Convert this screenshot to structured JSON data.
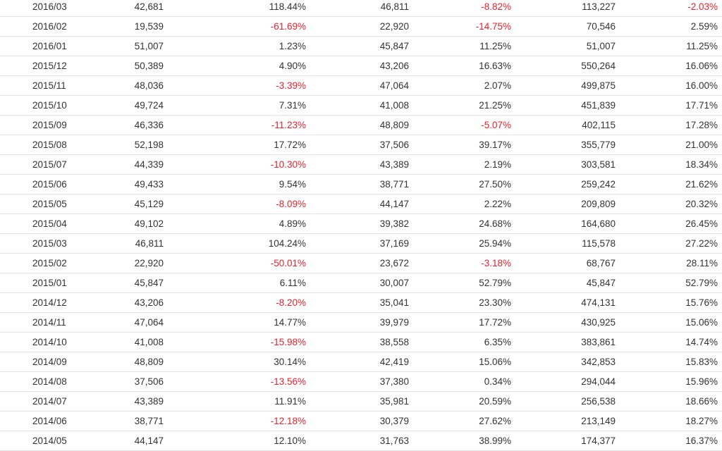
{
  "colors": {
    "text": "#333333",
    "negative": "#e8222e",
    "divider": "#e6e6e6"
  },
  "rows": [
    {
      "date": "2016/03",
      "v1": "42,681",
      "p1": "118.44%",
      "v2": "46,811",
      "p2": "-8.82%",
      "v3": "113,227",
      "p3": "-2.03%"
    },
    {
      "date": "2016/02",
      "v1": "19,539",
      "p1": "-61.69%",
      "v2": "22,920",
      "p2": "-14.75%",
      "v3": "70,546",
      "p3": "2.59%"
    },
    {
      "date": "2016/01",
      "v1": "51,007",
      "p1": "1.23%",
      "v2": "45,847",
      "p2": "11.25%",
      "v3": "51,007",
      "p3": "11.25%"
    },
    {
      "date": "2015/12",
      "v1": "50,389",
      "p1": "4.90%",
      "v2": "43,206",
      "p2": "16.63%",
      "v3": "550,264",
      "p3": "16.06%"
    },
    {
      "date": "2015/11",
      "v1": "48,036",
      "p1": "-3.39%",
      "v2": "47,064",
      "p2": "2.07%",
      "v3": "499,875",
      "p3": "16.00%"
    },
    {
      "date": "2015/10",
      "v1": "49,724",
      "p1": "7.31%",
      "v2": "41,008",
      "p2": "21.25%",
      "v3": "451,839",
      "p3": "17.71%"
    },
    {
      "date": "2015/09",
      "v1": "46,336",
      "p1": "-11.23%",
      "v2": "48,809",
      "p2": "-5.07%",
      "v3": "402,115",
      "p3": "17.28%"
    },
    {
      "date": "2015/08",
      "v1": "52,198",
      "p1": "17.72%",
      "v2": "37,506",
      "p2": "39.17%",
      "v3": "355,779",
      "p3": "21.00%"
    },
    {
      "date": "2015/07",
      "v1": "44,339",
      "p1": "-10.30%",
      "v2": "43,389",
      "p2": "2.19%",
      "v3": "303,581",
      "p3": "18.34%"
    },
    {
      "date": "2015/06",
      "v1": "49,433",
      "p1": "9.54%",
      "v2": "38,771",
      "p2": "27.50%",
      "v3": "259,242",
      "p3": "21.62%"
    },
    {
      "date": "2015/05",
      "v1": "45,129",
      "p1": "-8.09%",
      "v2": "44,147",
      "p2": "2.22%",
      "v3": "209,809",
      "p3": "20.32%"
    },
    {
      "date": "2015/04",
      "v1": "49,102",
      "p1": "4.89%",
      "v2": "39,382",
      "p2": "24.68%",
      "v3": "164,680",
      "p3": "26.45%"
    },
    {
      "date": "2015/03",
      "v1": "46,811",
      "p1": "104.24%",
      "v2": "37,169",
      "p2": "25.94%",
      "v3": "115,578",
      "p3": "27.22%"
    },
    {
      "date": "2015/02",
      "v1": "22,920",
      "p1": "-50.01%",
      "v2": "23,672",
      "p2": "-3.18%",
      "v3": "68,767",
      "p3": "28.11%"
    },
    {
      "date": "2015/01",
      "v1": "45,847",
      "p1": "6.11%",
      "v2": "30,007",
      "p2": "52.79%",
      "v3": "45,847",
      "p3": "52.79%"
    },
    {
      "date": "2014/12",
      "v1": "43,206",
      "p1": "-8.20%",
      "v2": "35,041",
      "p2": "23.30%",
      "v3": "474,131",
      "p3": "15.76%"
    },
    {
      "date": "2014/11",
      "v1": "47,064",
      "p1": "14.77%",
      "v2": "39,979",
      "p2": "17.72%",
      "v3": "430,925",
      "p3": "15.06%"
    },
    {
      "date": "2014/10",
      "v1": "41,008",
      "p1": "-15.98%",
      "v2": "38,558",
      "p2": "6.35%",
      "v3": "383,861",
      "p3": "14.74%"
    },
    {
      "date": "2014/09",
      "v1": "48,809",
      "p1": "30.14%",
      "v2": "42,419",
      "p2": "15.06%",
      "v3": "342,853",
      "p3": "15.83%"
    },
    {
      "date": "2014/08",
      "v1": "37,506",
      "p1": "-13.56%",
      "v2": "37,380",
      "p2": "0.34%",
      "v3": "294,044",
      "p3": "15.96%"
    },
    {
      "date": "2014/07",
      "v1": "43,389",
      "p1": "11.91%",
      "v2": "35,981",
      "p2": "20.59%",
      "v3": "256,538",
      "p3": "18.66%"
    },
    {
      "date": "2014/06",
      "v1": "38,771",
      "p1": "-12.18%",
      "v2": "30,379",
      "p2": "27.62%",
      "v3": "213,149",
      "p3": "18.27%"
    },
    {
      "date": "2014/05",
      "v1": "44,147",
      "p1": "12.10%",
      "v2": "31,763",
      "p2": "38.99%",
      "v3": "174,377",
      "p3": "16.37%"
    }
  ]
}
